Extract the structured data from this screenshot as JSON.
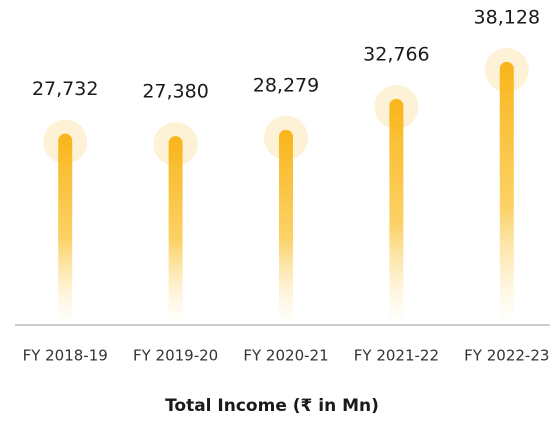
{
  "chart_data": {
    "type": "bar",
    "title": "Total Income (₹ in Mn)",
    "categories": [
      "FY 2018-19",
      "FY 2019-20",
      "FY 2020-21",
      "FY 2021-22",
      "FY 2022-23"
    ],
    "values": [
      27732,
      27380,
      28279,
      32766,
      38128
    ],
    "value_labels": [
      "27,732",
      "27,380",
      "28,279",
      "32,766",
      "38,128"
    ],
    "color": "#f9b51a",
    "ylim": [
      0,
      40000
    ]
  }
}
